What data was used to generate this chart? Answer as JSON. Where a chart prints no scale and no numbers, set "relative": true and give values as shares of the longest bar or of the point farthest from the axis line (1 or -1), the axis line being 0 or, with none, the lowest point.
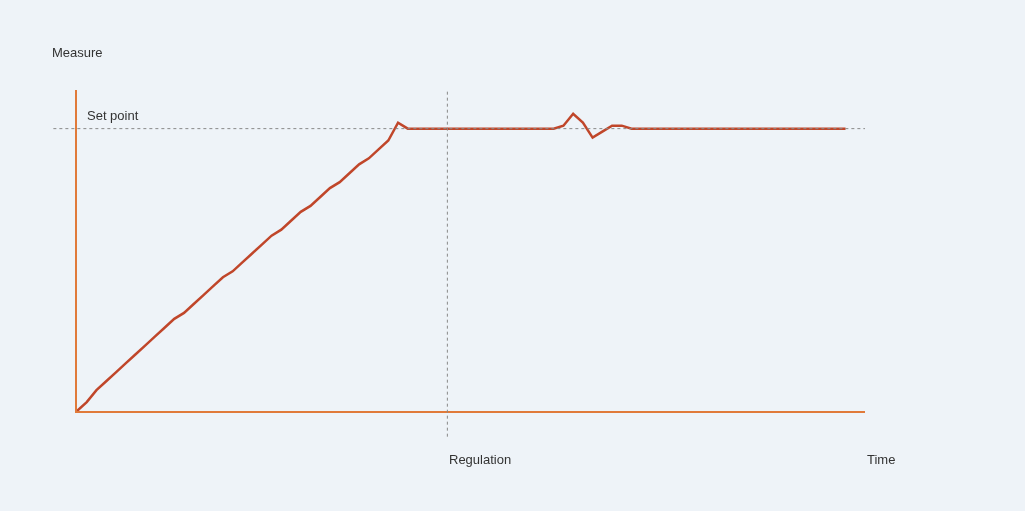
{
  "chart_data": {
    "type": "line",
    "relative": true,
    "xlabel": "Time",
    "ylabel": "Measure",
    "categories": [
      null,
      null,
      null,
      null,
      null,
      null,
      null,
      null,
      null,
      null,
      null,
      null,
      null,
      null,
      null,
      null,
      null,
      null,
      null,
      null,
      null,
      null,
      null,
      null,
      null,
      null,
      null,
      null,
      null,
      null,
      null,
      null,
      null,
      null,
      null,
      null,
      null,
      null,
      null,
      null,
      null,
      null,
      null,
      null,
      null,
      null,
      null,
      null,
      null,
      null,
      null,
      null,
      null,
      null,
      null,
      null,
      null,
      null,
      null,
      null,
      null,
      null,
      null,
      null,
      null,
      null,
      null,
      null,
      null,
      null,
      null,
      null,
      null,
      null,
      null,
      null,
      null,
      null,
      null,
      null
    ],
    "series": [
      {
        "color": "#c0462a",
        "values": [
          0,
          0.03,
          0.07,
          0.1,
          0.13,
          0.16,
          0.19,
          0.22,
          0.25,
          0.28,
          0.31,
          0.33,
          0.36,
          0.39,
          0.42,
          0.45,
          0.47,
          0.5,
          0.53,
          0.56,
          0.59,
          0.61,
          0.64,
          0.67,
          0.69,
          0.72,
          0.75,
          0.77,
          0.8,
          0.83,
          0.85,
          0.88,
          0.91,
          0.97,
          0.95,
          0.95,
          0.95,
          0.95,
          0.95,
          0.95,
          0.95,
          0.95,
          0.95,
          0.95,
          0.95,
          0.95,
          0.95,
          0.95,
          0.95,
          0.95,
          0.96,
          1,
          0.97,
          0.92,
          0.94,
          0.96,
          0.96,
          0.95,
          0.95,
          0.95,
          0.95,
          0.95,
          0.95,
          0.95,
          0.95,
          0.95,
          0.95,
          0.95,
          0.95,
          0.95,
          0.95,
          0.95,
          0.95,
          0.95,
          0.95,
          0.95,
          0.95,
          0.95,
          0.95,
          0.95
        ]
      }
    ],
    "ref_lines": [
      {
        "axis": "y",
        "value": 0.95,
        "label": "Set point",
        "color": "#888888",
        "line_style": "dotted"
      }
    ],
    "annotations": [
      "Regulation"
    ],
    "grid": false,
    "marker": "none",
    "line_style": "solid"
  }
}
